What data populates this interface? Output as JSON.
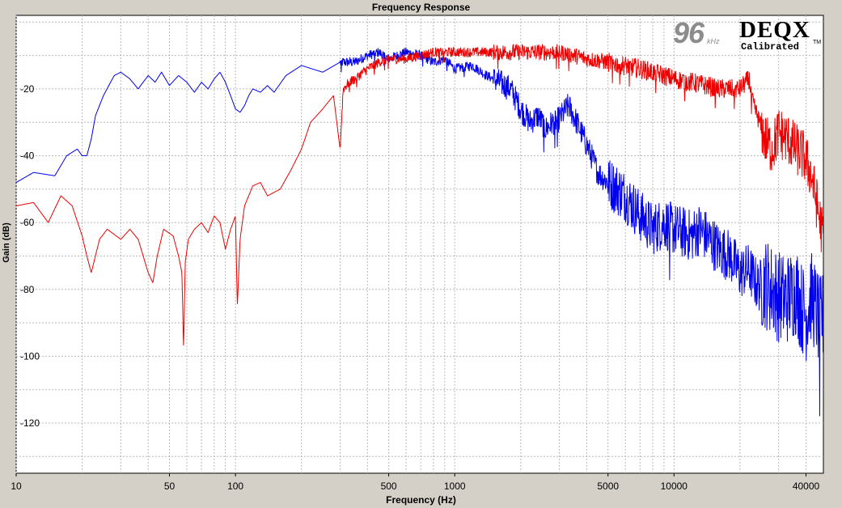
{
  "chart_data": {
    "type": "line",
    "title": "Frequency Response",
    "xlabel": "Frequency (Hz)",
    "ylabel": "Gain (dB)",
    "x_scale": "log",
    "xlim": [
      10,
      48000
    ],
    "ylim": [
      -135,
      2
    ],
    "x_ticks": [
      {
        "value": 10,
        "label": "10"
      },
      {
        "value": 50,
        "label": "50"
      },
      {
        "value": 100,
        "label": "100"
      },
      {
        "value": 500,
        "label": "500"
      },
      {
        "value": 1000,
        "label": "1000"
      },
      {
        "value": 5000,
        "label": "5000"
      },
      {
        "value": 10000,
        "label": "10000"
      },
      {
        "value": 40000,
        "label": "40000"
      }
    ],
    "y_ticks": [
      {
        "value": -20,
        "label": "-20"
      },
      {
        "value": -40,
        "label": "-40"
      },
      {
        "value": -60,
        "label": "-60"
      },
      {
        "value": -80,
        "label": "-80"
      },
      {
        "value": -100,
        "label": "-100"
      },
      {
        "value": -120,
        "label": "-120"
      }
    ],
    "grid": true,
    "background": "#ffffff",
    "series": [
      {
        "color": "#0000ee",
        "x": [
          10,
          12,
          15,
          17,
          19,
          20,
          21,
          22,
          23,
          25,
          28,
          30,
          33,
          36,
          40,
          43,
          46,
          50,
          55,
          60,
          65,
          70,
          75,
          80,
          85,
          90,
          95,
          100,
          105,
          110,
          115,
          120,
          130,
          140,
          150,
          170,
          200,
          250,
          300,
          350,
          400,
          450,
          500,
          600,
          700,
          800,
          900,
          1000,
          1200,
          1400,
          1600,
          1800,
          2000,
          2200,
          2400,
          2600,
          2800,
          3000,
          3300,
          3600,
          3900,
          4200,
          4500,
          5000,
          5500,
          6000,
          7000,
          8000,
          9000,
          10000,
          11000,
          12000,
          13000,
          14000,
          15000,
          16000,
          18000,
          20000,
          22000,
          24000,
          26000,
          28000,
          30000,
          32000,
          34000,
          36000,
          38000,
          40000,
          42000,
          44000,
          46000,
          48000
        ],
        "y": [
          -48,
          -45,
          -46,
          -40,
          -38,
          -40,
          -40,
          -35,
          -28,
          -22,
          -16,
          -15,
          -17,
          -20,
          -16,
          -18,
          -15,
          -19,
          -16,
          -18,
          -21,
          -18,
          -20,
          -17,
          -15,
          -18,
          -22,
          -26,
          -27,
          -25,
          -22,
          -20,
          -21,
          -19,
          -21,
          -16,
          -13,
          -15,
          -12,
          -12,
          -10,
          -9,
          -11,
          -9,
          -10,
          -12,
          -11,
          -14,
          -13,
          -16,
          -18,
          -20,
          -26,
          -30,
          -28,
          -32,
          -30,
          -29,
          -25,
          -30,
          -35,
          -40,
          -45,
          -48,
          -50,
          -52,
          -58,
          -62,
          -60,
          -62,
          -63,
          -64,
          -62,
          -64,
          -66,
          -68,
          -70,
          -75,
          -74,
          -79,
          -78,
          -80,
          -82,
          -83,
          -82,
          -80,
          -85,
          -88,
          -82,
          -85,
          -90,
          -88
        ]
      },
      {
        "color": "#ee0000",
        "x": [
          10,
          12,
          14,
          16,
          18,
          20,
          21,
          22,
          24,
          26,
          30,
          33,
          36,
          40,
          42,
          44,
          47,
          52,
          55,
          57,
          58,
          59,
          61,
          65,
          70,
          75,
          80,
          85,
          90,
          95,
          100,
          102,
          105,
          110,
          120,
          130,
          140,
          160,
          180,
          200,
          220,
          250,
          280,
          300,
          310,
          330,
          350,
          400,
          450,
          500,
          600,
          700,
          800,
          900,
          1000,
          1200,
          1500,
          2000,
          2500,
          3000,
          3500,
          4000,
          5000,
          6000,
          7000,
          8000,
          9000,
          10000,
          12000,
          14000,
          16000,
          18000,
          20000,
          22000,
          23000,
          24000,
          26000,
          28000,
          30000,
          33000,
          36000,
          39000,
          42000,
          45000,
          48000
        ],
        "y": [
          -55,
          -54,
          -60,
          -52,
          -55,
          -64,
          -70,
          -75,
          -65,
          -62,
          -65,
          -62,
          -65,
          -75,
          -78,
          -70,
          -62,
          -64,
          -70,
          -75,
          -98,
          -72,
          -65,
          -62,
          -60,
          -63,
          -58,
          -60,
          -68,
          -62,
          -58,
          -85,
          -65,
          -55,
          -49,
          -48,
          -52,
          -50,
          -44,
          -38,
          -30,
          -26,
          -22,
          -38,
          -20,
          -18,
          -17,
          -14,
          -12,
          -11,
          -11,
          -10,
          -9,
          -9,
          -9,
          -9,
          -9,
          -9,
          -9,
          -9,
          -10,
          -11,
          -12,
          -13,
          -14,
          -15,
          -16,
          -17,
          -18,
          -19,
          -20,
          -20,
          -20,
          -17,
          -25,
          -28,
          -35,
          -38,
          -33,
          -35,
          -38,
          -40,
          -45,
          -55,
          -65
        ]
      }
    ]
  },
  "badge": {
    "rate": "96",
    "rate_unit": "kHz",
    "brand": "DEQX",
    "subtitle": "Calibrated",
    "trademark": "TM"
  }
}
